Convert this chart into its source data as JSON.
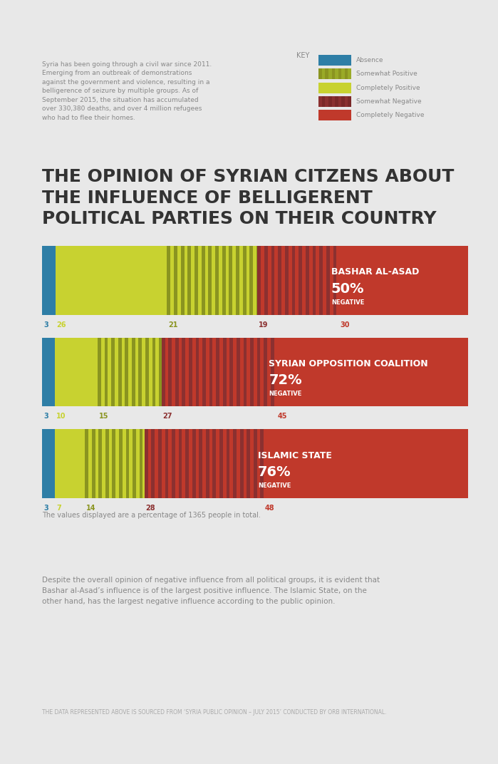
{
  "bg_color": "#e8e8e8",
  "title": "THE OPINION OF SYRIAN CITZENS ABOUT\nTHE INFLUENCE OF BELLIGERENT\nPOLITICAL PARTIES ON THEIR COUNTRY",
  "title_color": "#333333",
  "intro_text": "Syria has been going through a civil war since 2011.\nEmerging from an outbreak of demonstrations\nagainst the government and violence, resulting in a\nbelligerence of seizure by multiple groups. As of\nSeptember 2015, the situation has accumulated\nover 330,380 deaths, and over 4 million refugees\nwho had to flee their homes.",
  "conclusion_text": "Despite the overall opinion of negative influence from all political groups, it is evident that\nBashar al-Asad’s influence is of the largest positive influence. The Islamic State, on the\nother hand, has the largest negative influence according to the public opinion.",
  "source_text": "THE DATA REPRESENTED ABOVE IS SOURCED FROM ‘SYRIA PUBLIC OPINION – JULY 2015’ CONDUCTED BY ORB INTERNATIONAL.",
  "footnote": "The values displayed are a percentage of 1365 people in total.",
  "color_absence": "#2e7ea6",
  "color_comp_positive": "#c8d230",
  "color_somewhat_positive": "#8a9420",
  "color_somewhat_negative": "#8b3030",
  "color_comp_negative": "#c0392b",
  "charts": [
    {
      "label": "BASHAR AL-ASAD",
      "pct": "50%",
      "neg_label": "NEGATIVE",
      "values": [
        3,
        26,
        21,
        19,
        30
      ],
      "tick_labels": [
        "3",
        "26",
        "21",
        "19",
        "30"
      ]
    },
    {
      "label": "SYRIAN OPPOSITION COALITION",
      "pct": "72%",
      "neg_label": "NEGATIVE",
      "values": [
        3,
        10,
        15,
        27,
        45
      ],
      "tick_labels": [
        "3",
        "10",
        "15",
        "27",
        "45"
      ]
    },
    {
      "label": "ISLAMIC STATE",
      "pct": "76%",
      "neg_label": "NEGATIVE",
      "values": [
        3,
        7,
        14,
        28,
        48
      ],
      "tick_labels": [
        "3",
        "7",
        "14",
        "28",
        "48"
      ]
    }
  ],
  "key_labels": [
    "Absence",
    "Somewhat Positive",
    "Completely Positive",
    "Somewhat Negative",
    "Completely Negative"
  ]
}
